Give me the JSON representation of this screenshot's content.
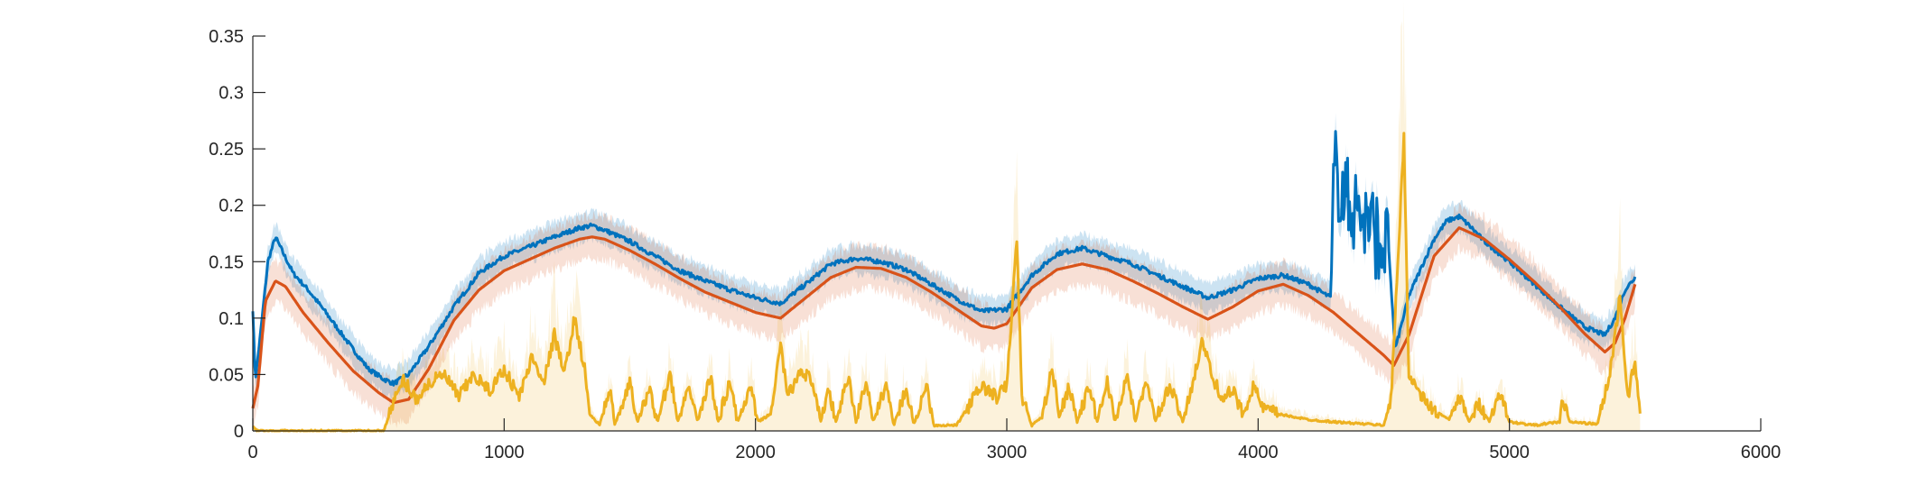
{
  "chart_data": {
    "type": "line",
    "title": "",
    "xlabel": "",
    "ylabel": "",
    "xlim": [
      0,
      6000
    ],
    "ylim": [
      0,
      0.35
    ],
    "xticks": [
      0,
      1000,
      2000,
      3000,
      4000,
      5000,
      6000
    ],
    "yticks": [
      0,
      0.05,
      0.1,
      0.15,
      0.2,
      0.25,
      0.3,
      0.35
    ],
    "xtick_labels": [
      "0",
      "1000",
      "2000",
      "3000",
      "4000",
      "5000",
      "6000"
    ],
    "ytick_labels": [
      "0",
      "0.05",
      "0.1",
      "0.15",
      "0.2",
      "0.25",
      "0.3",
      "0.35"
    ],
    "grid": false,
    "legend": "none",
    "box": "off",
    "colors": {
      "series_blue": "#0072BD",
      "series_orange": "#D95319",
      "series_yellow": "#EDB120",
      "axis": "#262626"
    },
    "series": [
      {
        "color": "#0072BD",
        "band": 0.015,
        "points": [
          [
            0,
            0.108
          ],
          [
            10,
            0.045
          ],
          [
            30,
            0.085
          ],
          [
            60,
            0.15
          ],
          [
            90,
            0.172
          ],
          [
            120,
            0.158
          ],
          [
            160,
            0.14
          ],
          [
            220,
            0.125
          ],
          [
            280,
            0.108
          ],
          [
            340,
            0.09
          ],
          [
            400,
            0.072
          ],
          [
            460,
            0.055
          ],
          [
            520,
            0.046
          ],
          [
            560,
            0.042
          ],
          [
            620,
            0.05
          ],
          [
            700,
            0.075
          ],
          [
            800,
            0.11
          ],
          [
            900,
            0.14
          ],
          [
            1000,
            0.155
          ],
          [
            1100,
            0.163
          ],
          [
            1200,
            0.172
          ],
          [
            1300,
            0.18
          ],
          [
            1350,
            0.182
          ],
          [
            1400,
            0.178
          ],
          [
            1500,
            0.168
          ],
          [
            1600,
            0.155
          ],
          [
            1700,
            0.142
          ],
          [
            1800,
            0.133
          ],
          [
            1900,
            0.125
          ],
          [
            2000,
            0.118
          ],
          [
            2100,
            0.113
          ],
          [
            2200,
            0.13
          ],
          [
            2300,
            0.148
          ],
          [
            2400,
            0.153
          ],
          [
            2500,
            0.15
          ],
          [
            2600,
            0.143
          ],
          [
            2700,
            0.13
          ],
          [
            2800,
            0.117
          ],
          [
            2900,
            0.106
          ],
          [
            3000,
            0.108
          ],
          [
            3100,
            0.138
          ],
          [
            3200,
            0.157
          ],
          [
            3300,
            0.162
          ],
          [
            3400,
            0.155
          ],
          [
            3500,
            0.148
          ],
          [
            3600,
            0.138
          ],
          [
            3700,
            0.128
          ],
          [
            3800,
            0.118
          ],
          [
            3900,
            0.125
          ],
          [
            4000,
            0.135
          ],
          [
            4100,
            0.138
          ],
          [
            4200,
            0.13
          ],
          [
            4290,
            0.118
          ],
          [
            4300,
            0.235
          ],
          [
            4350,
            0.205
          ],
          [
            4400,
            0.195
          ],
          [
            4450,
            0.18
          ],
          [
            4520,
            0.16
          ],
          [
            4545,
            0.072
          ],
          [
            4560,
            0.085
          ],
          [
            4600,
            0.12
          ],
          [
            4700,
            0.17
          ],
          [
            4750,
            0.186
          ],
          [
            4800,
            0.19
          ],
          [
            4850,
            0.18
          ],
          [
            4900,
            0.168
          ],
          [
            5000,
            0.15
          ],
          [
            5100,
            0.13
          ],
          [
            5200,
            0.11
          ],
          [
            5300,
            0.092
          ],
          [
            5380,
            0.085
          ],
          [
            5420,
            0.1
          ],
          [
            5460,
            0.125
          ],
          [
            5500,
            0.136
          ]
        ]
      },
      {
        "color": "#D95319",
        "band": 0.022,
        "points": [
          [
            0,
            0.02
          ],
          [
            20,
            0.04
          ],
          [
            50,
            0.115
          ],
          [
            90,
            0.133
          ],
          [
            130,
            0.128
          ],
          [
            200,
            0.105
          ],
          [
            300,
            0.078
          ],
          [
            400,
            0.053
          ],
          [
            500,
            0.034
          ],
          [
            560,
            0.025
          ],
          [
            620,
            0.028
          ],
          [
            700,
            0.055
          ],
          [
            800,
            0.098
          ],
          [
            900,
            0.125
          ],
          [
            1000,
            0.142
          ],
          [
            1100,
            0.152
          ],
          [
            1200,
            0.162
          ],
          [
            1300,
            0.17
          ],
          [
            1350,
            0.172
          ],
          [
            1400,
            0.17
          ],
          [
            1500,
            0.16
          ],
          [
            1600,
            0.148
          ],
          [
            1700,
            0.135
          ],
          [
            1800,
            0.123
          ],
          [
            1900,
            0.114
          ],
          [
            2000,
            0.105
          ],
          [
            2100,
            0.1
          ],
          [
            2200,
            0.118
          ],
          [
            2300,
            0.136
          ],
          [
            2400,
            0.145
          ],
          [
            2500,
            0.144
          ],
          [
            2600,
            0.136
          ],
          [
            2700,
            0.123
          ],
          [
            2800,
            0.108
          ],
          [
            2900,
            0.093
          ],
          [
            2950,
            0.091
          ],
          [
            3000,
            0.095
          ],
          [
            3100,
            0.127
          ],
          [
            3200,
            0.143
          ],
          [
            3300,
            0.148
          ],
          [
            3400,
            0.143
          ],
          [
            3500,
            0.133
          ],
          [
            3600,
            0.122
          ],
          [
            3700,
            0.11
          ],
          [
            3800,
            0.099
          ],
          [
            3900,
            0.11
          ],
          [
            4000,
            0.124
          ],
          [
            4100,
            0.13
          ],
          [
            4200,
            0.12
          ],
          [
            4300,
            0.105
          ],
          [
            4400,
            0.086
          ],
          [
            4500,
            0.067
          ],
          [
            4540,
            0.058
          ],
          [
            4600,
            0.085
          ],
          [
            4700,
            0.155
          ],
          [
            4800,
            0.18
          ],
          [
            4900,
            0.17
          ],
          [
            5000,
            0.152
          ],
          [
            5100,
            0.132
          ],
          [
            5200,
            0.11
          ],
          [
            5300,
            0.086
          ],
          [
            5380,
            0.07
          ],
          [
            5420,
            0.078
          ],
          [
            5460,
            0.1
          ],
          [
            5500,
            0.13
          ]
        ]
      },
      {
        "color": "#EDB120",
        "points": [
          [
            0,
            0.005
          ],
          [
            15,
            0
          ],
          [
            100,
            0
          ],
          [
            300,
            0
          ],
          [
            520,
            0
          ],
          [
            560,
            0.025
          ],
          [
            600,
            0.045
          ],
          [
            650,
            0.028
          ],
          [
            700,
            0.042
          ],
          [
            760,
            0.05
          ],
          [
            820,
            0.03
          ],
          [
            880,
            0.05
          ],
          [
            940,
            0.035
          ],
          [
            1000,
            0.055
          ],
          [
            1060,
            0.03
          ],
          [
            1110,
            0.065
          ],
          [
            1160,
            0.045
          ],
          [
            1200,
            0.085
          ],
          [
            1240,
            0.05
          ],
          [
            1280,
            0.1
          ],
          [
            1320,
            0.055
          ],
          [
            1340,
            0.015
          ],
          [
            1380,
            0.005
          ],
          [
            1420,
            0.038
          ],
          [
            1440,
            0.005
          ],
          [
            1500,
            0.042
          ],
          [
            1530,
            0.008
          ],
          [
            1580,
            0.038
          ],
          [
            1610,
            0.008
          ],
          [
            1660,
            0.05
          ],
          [
            1690,
            0.008
          ],
          [
            1740,
            0.038
          ],
          [
            1770,
            0.008
          ],
          [
            1820,
            0.048
          ],
          [
            1850,
            0.008
          ],
          [
            1900,
            0.045
          ],
          [
            1930,
            0.008
          ],
          [
            1980,
            0.038
          ],
          [
            2010,
            0.008
          ],
          [
            2060,
            0.015
          ],
          [
            2100,
            0.075
          ],
          [
            2130,
            0.03
          ],
          [
            2180,
            0.055
          ],
          [
            2220,
            0.045
          ],
          [
            2260,
            0.008
          ],
          [
            2290,
            0.038
          ],
          [
            2320,
            0.008
          ],
          [
            2370,
            0.048
          ],
          [
            2400,
            0.008
          ],
          [
            2440,
            0.045
          ],
          [
            2470,
            0.008
          ],
          [
            2520,
            0.042
          ],
          [
            2550,
            0.005
          ],
          [
            2600,
            0.038
          ],
          [
            2630,
            0.005
          ],
          [
            2680,
            0.042
          ],
          [
            2710,
            0.005
          ],
          [
            2800,
            0.005
          ],
          [
            2900,
            0.04
          ],
          [
            2960,
            0.03
          ],
          [
            3000,
            0.04
          ],
          [
            3040,
            0.17
          ],
          [
            3060,
            0.03
          ],
          [
            3100,
            0.005
          ],
          [
            3140,
            0.012
          ],
          [
            3180,
            0.055
          ],
          [
            3210,
            0.015
          ],
          [
            3250,
            0.04
          ],
          [
            3280,
            0.008
          ],
          [
            3330,
            0.04
          ],
          [
            3360,
            0.008
          ],
          [
            3400,
            0.045
          ],
          [
            3430,
            0.008
          ],
          [
            3480,
            0.05
          ],
          [
            3510,
            0.008
          ],
          [
            3560,
            0.045
          ],
          [
            3590,
            0.008
          ],
          [
            3650,
            0.04
          ],
          [
            3700,
            0.008
          ],
          [
            3780,
            0.08
          ],
          [
            3820,
            0.045
          ],
          [
            3860,
            0.03
          ],
          [
            3900,
            0.035
          ],
          [
            3940,
            0.015
          ],
          [
            3980,
            0.04
          ],
          [
            4020,
            0.02
          ],
          [
            4080,
            0.015
          ],
          [
            4200,
            0.01
          ],
          [
            4300,
            0.008
          ],
          [
            4500,
            0.005
          ],
          [
            4530,
            0.03
          ],
          [
            4580,
            0.26
          ],
          [
            4600,
            0.05
          ],
          [
            4650,
            0.03
          ],
          [
            4700,
            0.018
          ],
          [
            4760,
            0.01
          ],
          [
            4800,
            0.03
          ],
          [
            4840,
            0.008
          ],
          [
            4880,
            0.025
          ],
          [
            4920,
            0.008
          ],
          [
            4960,
            0.035
          ],
          [
            5000,
            0.008
          ],
          [
            5100,
            0.005
          ],
          [
            5200,
            0.008
          ],
          [
            5210,
            0.028
          ],
          [
            5240,
            0.008
          ],
          [
            5350,
            0.006
          ],
          [
            5400,
            0.05
          ],
          [
            5440,
            0.12
          ],
          [
            5470,
            0.03
          ],
          [
            5500,
            0.06
          ],
          [
            5520,
            0.015
          ]
        ]
      }
    ]
  }
}
